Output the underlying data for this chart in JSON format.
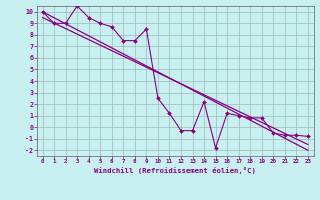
{
  "xlabel": "Windchill (Refroidissement éolien,°C)",
  "bg_color": "#c8f0f0",
  "grid_color": "#a0b8b8",
  "line_color": "#880088",
  "xlim": [
    -0.5,
    23.5
  ],
  "ylim": [
    -2.5,
    10.5
  ],
  "yticks": [
    -2,
    -1,
    0,
    1,
    2,
    3,
    4,
    5,
    6,
    7,
    8,
    9,
    10
  ],
  "xticks": [
    0,
    1,
    2,
    3,
    4,
    5,
    6,
    7,
    8,
    9,
    10,
    11,
    12,
    13,
    14,
    15,
    16,
    17,
    18,
    19,
    20,
    21,
    22,
    23
  ],
  "line1_x": [
    0,
    23
  ],
  "line1_y": [
    10,
    -2
  ],
  "line2_x": [
    0,
    23
  ],
  "line2_y": [
    9.5,
    -1.5
  ],
  "data_x": [
    0,
    1,
    2,
    3,
    4,
    5,
    6,
    7,
    8,
    9,
    10,
    11,
    12,
    13,
    14,
    15,
    16,
    17,
    18,
    19,
    20,
    21,
    22,
    23
  ],
  "data_y": [
    10,
    9,
    9,
    10.5,
    9.5,
    9.0,
    8.7,
    7.5,
    7.5,
    8.5,
    2.5,
    1.2,
    -0.3,
    -0.3,
    2.2,
    -1.8,
    1.2,
    1.0,
    0.8,
    0.8,
    -0.5,
    -0.7,
    -0.7,
    -0.8
  ]
}
